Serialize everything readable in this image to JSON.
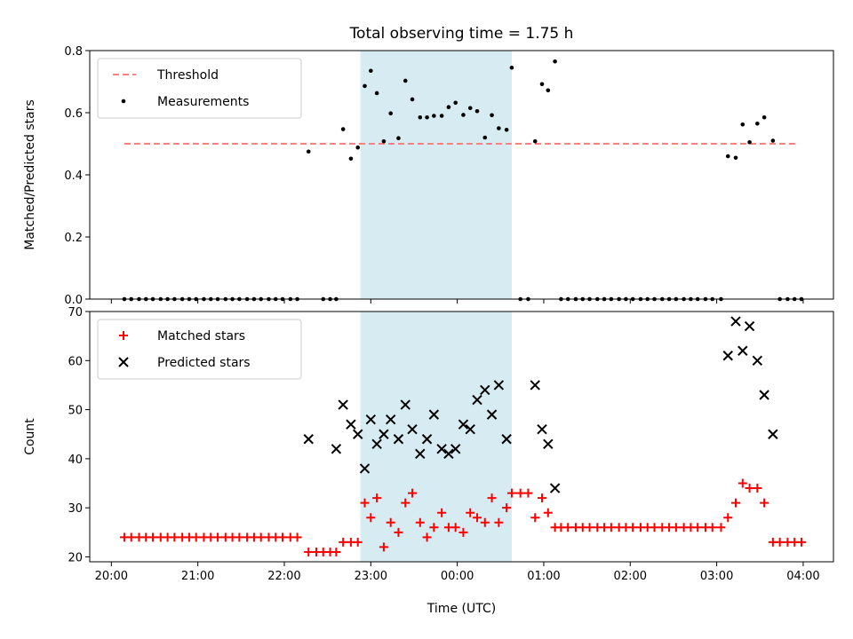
{
  "chart_data": [
    {
      "type": "scatter",
      "title": "Total observing time = 1.75 h",
      "ylabel": "Matched/Predicted stars",
      "xlabel": "",
      "ylim": [
        0,
        0.8
      ],
      "yticks": [
        "0.0",
        "0.2",
        "0.4",
        "0.6",
        "0.8"
      ],
      "xlim_hours": [
        19.75,
        28.35
      ],
      "xticks": [
        20,
        21,
        22,
        23,
        24,
        25,
        26,
        27,
        28
      ],
      "shaded_span_hours": [
        22.88,
        24.63
      ],
      "threshold": {
        "name": "Threshold",
        "y": 0.5,
        "x_start": 20.15,
        "x_end": 27.95,
        "color": "#ff8080"
      },
      "legend": {
        "placement": "upper-left",
        "entries": [
          "Threshold",
          "Measurements"
        ]
      },
      "series": [
        {
          "name": "Measurements",
          "color": "#000000",
          "marker": "dot",
          "points": [
            [
              20.15,
              0
            ],
            [
              20.23,
              0
            ],
            [
              20.32,
              0
            ],
            [
              20.4,
              0
            ],
            [
              20.48,
              0
            ],
            [
              20.57,
              0
            ],
            [
              20.65,
              0
            ],
            [
              20.73,
              0
            ],
            [
              20.82,
              0
            ],
            [
              20.9,
              0
            ],
            [
              20.98,
              0
            ],
            [
              21.07,
              0
            ],
            [
              21.15,
              0
            ],
            [
              21.23,
              0
            ],
            [
              21.32,
              0
            ],
            [
              21.4,
              0
            ],
            [
              21.48,
              0
            ],
            [
              21.57,
              0
            ],
            [
              21.65,
              0
            ],
            [
              21.73,
              0
            ],
            [
              21.82,
              0
            ],
            [
              21.9,
              0
            ],
            [
              21.98,
              0
            ],
            [
              22.07,
              0
            ],
            [
              22.15,
              0
            ],
            [
              22.28,
              0.475
            ],
            [
              22.45,
              0
            ],
            [
              22.53,
              0
            ],
            [
              22.6,
              0
            ],
            [
              22.68,
              0.547
            ],
            [
              22.77,
              0.452
            ],
            [
              22.85,
              0.488
            ],
            [
              22.93,
              0.686
            ],
            [
              23.0,
              0.735
            ],
            [
              23.07,
              0.663
            ],
            [
              23.15,
              0.508
            ],
            [
              23.23,
              0.598
            ],
            [
              23.32,
              0.518
            ],
            [
              23.4,
              0.703
            ],
            [
              23.48,
              0.643
            ],
            [
              23.57,
              0.585
            ],
            [
              23.65,
              0.585
            ],
            [
              23.73,
              0.59
            ],
            [
              23.82,
              0.59
            ],
            [
              23.9,
              0.618
            ],
            [
              23.98,
              0.632
            ],
            [
              24.07,
              0.593
            ],
            [
              24.15,
              0.615
            ],
            [
              24.23,
              0.605
            ],
            [
              24.32,
              0.52
            ],
            [
              24.4,
              0.592
            ],
            [
              24.48,
              0.55
            ],
            [
              24.57,
              0.545
            ],
            [
              24.63,
              0.745
            ],
            [
              24.73,
              0
            ],
            [
              24.82,
              0
            ],
            [
              24.9,
              0.508
            ],
            [
              24.98,
              0.692
            ],
            [
              25.05,
              0.672
            ],
            [
              25.13,
              0.765
            ],
            [
              25.2,
              0
            ],
            [
              25.28,
              0
            ],
            [
              25.37,
              0
            ],
            [
              25.45,
              0
            ],
            [
              25.53,
              0
            ],
            [
              25.62,
              0
            ],
            [
              25.7,
              0
            ],
            [
              25.78,
              0
            ],
            [
              25.87,
              0
            ],
            [
              25.95,
              0
            ],
            [
              26.03,
              0
            ],
            [
              26.12,
              0
            ],
            [
              26.2,
              0
            ],
            [
              26.28,
              0
            ],
            [
              26.37,
              0
            ],
            [
              26.45,
              0
            ],
            [
              26.53,
              0
            ],
            [
              26.62,
              0
            ],
            [
              26.7,
              0
            ],
            [
              26.78,
              0
            ],
            [
              26.87,
              0
            ],
            [
              26.95,
              0
            ],
            [
              27.05,
              0
            ],
            [
              27.13,
              0.46
            ],
            [
              27.22,
              0.455
            ],
            [
              27.3,
              0.562
            ],
            [
              27.38,
              0.505
            ],
            [
              27.47,
              0.565
            ],
            [
              27.55,
              0.585
            ],
            [
              27.65,
              0.51
            ],
            [
              27.73,
              0
            ],
            [
              27.82,
              0
            ],
            [
              27.9,
              0
            ],
            [
              27.98,
              0
            ]
          ]
        }
      ]
    },
    {
      "type": "scatter",
      "title": "",
      "ylabel": "Count",
      "xlabel": "Time (UTC)",
      "ylim": [
        19,
        70
      ],
      "yticks": [
        "20",
        "30",
        "40",
        "50",
        "60",
        "70"
      ],
      "xlim_hours": [
        19.75,
        28.35
      ],
      "xticks": [
        20,
        21,
        22,
        23,
        24,
        25,
        26,
        27,
        28
      ],
      "xtick_labels": [
        "20:00",
        "21:00",
        "22:00",
        "23:00",
        "00:00",
        "01:00",
        "02:00",
        "03:00",
        "04:00"
      ],
      "shaded_span_hours": [
        22.88,
        24.63
      ],
      "legend": {
        "placement": "upper-left",
        "entries": [
          "Matched stars",
          "Predicted stars"
        ]
      },
      "series": [
        {
          "name": "Matched stars",
          "color": "#ff0000",
          "marker": "plus",
          "points": [
            [
              20.15,
              24
            ],
            [
              20.23,
              24
            ],
            [
              20.32,
              24
            ],
            [
              20.4,
              24
            ],
            [
              20.48,
              24
            ],
            [
              20.57,
              24
            ],
            [
              20.65,
              24
            ],
            [
              20.73,
              24
            ],
            [
              20.82,
              24
            ],
            [
              20.9,
              24
            ],
            [
              20.98,
              24
            ],
            [
              21.07,
              24
            ],
            [
              21.15,
              24
            ],
            [
              21.23,
              24
            ],
            [
              21.32,
              24
            ],
            [
              21.4,
              24
            ],
            [
              21.48,
              24
            ],
            [
              21.57,
              24
            ],
            [
              21.65,
              24
            ],
            [
              21.73,
              24
            ],
            [
              21.82,
              24
            ],
            [
              21.9,
              24
            ],
            [
              21.98,
              24
            ],
            [
              22.07,
              24
            ],
            [
              22.15,
              24
            ],
            [
              22.28,
              21
            ],
            [
              22.37,
              21
            ],
            [
              22.45,
              21
            ],
            [
              22.53,
              21
            ],
            [
              22.6,
              21
            ],
            [
              22.68,
              23
            ],
            [
              22.77,
              23
            ],
            [
              22.85,
              23
            ],
            [
              22.93,
              31
            ],
            [
              23.0,
              28
            ],
            [
              23.07,
              32
            ],
            [
              23.15,
              22
            ],
            [
              23.23,
              27
            ],
            [
              23.32,
              25
            ],
            [
              23.4,
              31
            ],
            [
              23.48,
              33
            ],
            [
              23.57,
              27
            ],
            [
              23.65,
              24
            ],
            [
              23.73,
              26
            ],
            [
              23.82,
              29
            ],
            [
              23.9,
              26
            ],
            [
              23.98,
              26
            ],
            [
              24.07,
              25
            ],
            [
              24.15,
              29
            ],
            [
              24.23,
              28
            ],
            [
              24.32,
              27
            ],
            [
              24.4,
              32
            ],
            [
              24.48,
              27
            ],
            [
              24.57,
              30
            ],
            [
              24.63,
              33
            ],
            [
              24.73,
              33
            ],
            [
              24.82,
              33
            ],
            [
              24.9,
              28
            ],
            [
              24.98,
              32
            ],
            [
              25.05,
              29
            ],
            [
              25.13,
              26
            ],
            [
              25.2,
              26
            ],
            [
              25.28,
              26
            ],
            [
              25.37,
              26
            ],
            [
              25.45,
              26
            ],
            [
              25.53,
              26
            ],
            [
              25.62,
              26
            ],
            [
              25.7,
              26
            ],
            [
              25.78,
              26
            ],
            [
              25.87,
              26
            ],
            [
              25.95,
              26
            ],
            [
              26.03,
              26
            ],
            [
              26.12,
              26
            ],
            [
              26.2,
              26
            ],
            [
              26.28,
              26
            ],
            [
              26.37,
              26
            ],
            [
              26.45,
              26
            ],
            [
              26.53,
              26
            ],
            [
              26.62,
              26
            ],
            [
              26.7,
              26
            ],
            [
              26.78,
              26
            ],
            [
              26.87,
              26
            ],
            [
              26.95,
              26
            ],
            [
              27.05,
              26
            ],
            [
              27.13,
              28
            ],
            [
              27.22,
              31
            ],
            [
              27.3,
              35
            ],
            [
              27.38,
              34
            ],
            [
              27.47,
              34
            ],
            [
              27.55,
              31
            ],
            [
              27.65,
              23
            ],
            [
              27.73,
              23
            ],
            [
              27.82,
              23
            ],
            [
              27.9,
              23
            ],
            [
              27.98,
              23
            ]
          ]
        },
        {
          "name": "Predicted stars",
          "color": "#000000",
          "marker": "x",
          "points": [
            [
              22.28,
              44
            ],
            [
              22.6,
              42
            ],
            [
              22.68,
              51
            ],
            [
              22.77,
              47
            ],
            [
              22.85,
              45
            ],
            [
              22.93,
              38
            ],
            [
              23.0,
              48
            ],
            [
              23.07,
              43
            ],
            [
              23.15,
              45
            ],
            [
              23.23,
              48
            ],
            [
              23.32,
              44
            ],
            [
              23.4,
              51
            ],
            [
              23.48,
              46
            ],
            [
              23.57,
              41
            ],
            [
              23.65,
              44
            ],
            [
              23.73,
              49
            ],
            [
              23.82,
              42
            ],
            [
              23.9,
              41
            ],
            [
              23.98,
              42
            ],
            [
              24.07,
              47
            ],
            [
              24.15,
              46
            ],
            [
              24.23,
              52
            ],
            [
              24.32,
              54
            ],
            [
              24.4,
              49
            ],
            [
              24.48,
              55
            ],
            [
              24.57,
              44
            ],
            [
              24.9,
              55
            ],
            [
              24.98,
              46
            ],
            [
              25.05,
              43
            ],
            [
              25.13,
              34
            ],
            [
              27.13,
              61
            ],
            [
              27.22,
              68
            ],
            [
              27.3,
              62
            ],
            [
              27.38,
              67
            ],
            [
              27.47,
              60
            ],
            [
              27.55,
              53
            ],
            [
              27.65,
              45
            ]
          ]
        }
      ]
    }
  ]
}
